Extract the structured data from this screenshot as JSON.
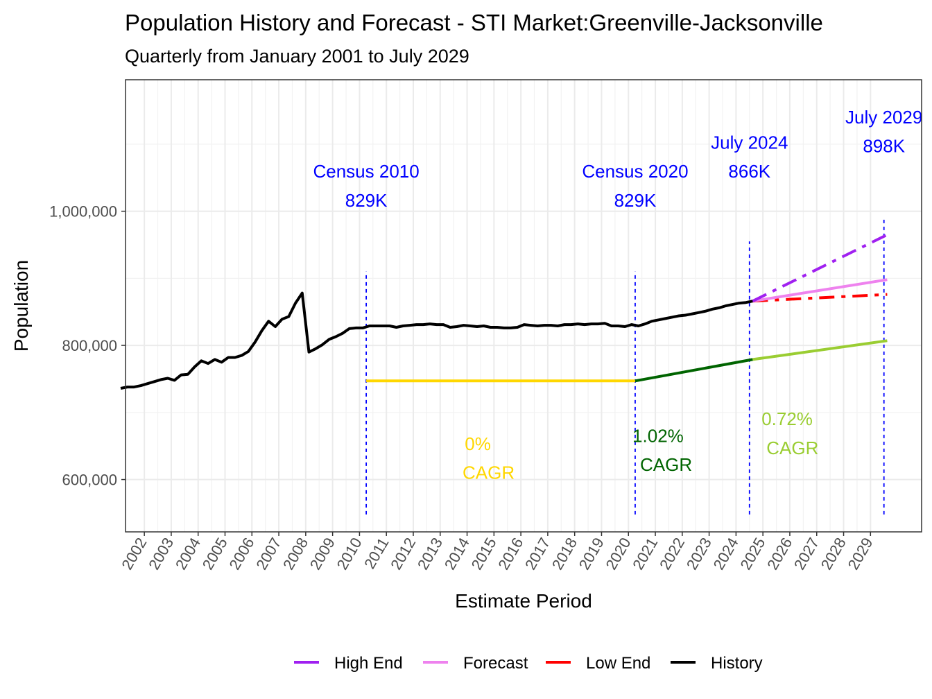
{
  "chart_data": {
    "type": "line",
    "title": "Population History and Forecast - STI Market:Greenville-Jacksonville",
    "subtitle": "Quarterly from January 2001 to July 2029",
    "xlabel": "Estimate Period",
    "ylabel": "Population",
    "xlim": [
      2001.3,
      2030.9
    ],
    "ylim": [
      522000,
      1196000
    ],
    "x_ticks": [
      2002,
      2003,
      2004,
      2005,
      2006,
      2007,
      2008,
      2009,
      2010,
      2011,
      2012,
      2013,
      2014,
      2015,
      2016,
      2017,
      2018,
      2019,
      2020,
      2021,
      2022,
      2023,
      2024,
      2025,
      2026,
      2027,
      2028,
      2029
    ],
    "y_ticks": [
      600000,
      800000,
      1000000
    ],
    "y_tick_labels": [
      "600,000",
      "800,000",
      "1,000,000"
    ],
    "colors": {
      "history": "#000000",
      "forecast": "#EE82EE",
      "high_end": "#A020F0",
      "low_end": "#FF0000",
      "cagr_2010_2020": "#FFD700",
      "cagr_2020_2024": "#006400",
      "cagr_2024_2029": "#9ACD32",
      "annotation": "#0000FF"
    },
    "series": [
      {
        "name": "History",
        "style": "solid",
        "points": [
          [
            2001.12,
            736000
          ],
          [
            2001.37,
            738000
          ],
          [
            2001.62,
            738000
          ],
          [
            2001.87,
            740000
          ],
          [
            2002.12,
            743000
          ],
          [
            2002.37,
            746000
          ],
          [
            2002.62,
            749000
          ],
          [
            2002.87,
            751000
          ],
          [
            2003.12,
            748000
          ],
          [
            2003.37,
            756000
          ],
          [
            2003.62,
            757000
          ],
          [
            2003.87,
            768000
          ],
          [
            2004.12,
            777000
          ],
          [
            2004.37,
            773000
          ],
          [
            2004.62,
            779000
          ],
          [
            2004.87,
            775000
          ],
          [
            2005.12,
            782000
          ],
          [
            2005.37,
            782000
          ],
          [
            2005.62,
            785000
          ],
          [
            2005.87,
            791000
          ],
          [
            2006.12,
            805000
          ],
          [
            2006.37,
            822000
          ],
          [
            2006.62,
            836000
          ],
          [
            2006.87,
            828000
          ],
          [
            2007.12,
            839000
          ],
          [
            2007.37,
            843000
          ],
          [
            2007.62,
            863000
          ],
          [
            2007.87,
            878000
          ],
          [
            2008.12,
            790000
          ],
          [
            2008.37,
            795000
          ],
          [
            2008.62,
            801000
          ],
          [
            2008.87,
            809000
          ],
          [
            2009.12,
            813000
          ],
          [
            2009.37,
            818000
          ],
          [
            2009.62,
            825000
          ],
          [
            2009.87,
            826000
          ],
          [
            2010.12,
            826000
          ],
          [
            2010.37,
            829000
          ],
          [
            2010.62,
            829000
          ],
          [
            2010.87,
            829000
          ],
          [
            2011.12,
            829000
          ],
          [
            2011.37,
            827000
          ],
          [
            2011.62,
            829000
          ],
          [
            2011.87,
            830000
          ],
          [
            2012.12,
            831000
          ],
          [
            2012.37,
            831000
          ],
          [
            2012.62,
            832000
          ],
          [
            2012.87,
            831000
          ],
          [
            2013.12,
            831000
          ],
          [
            2013.37,
            827000
          ],
          [
            2013.62,
            828000
          ],
          [
            2013.87,
            830000
          ],
          [
            2014.12,
            829000
          ],
          [
            2014.37,
            828000
          ],
          [
            2014.62,
            829000
          ],
          [
            2014.87,
            827000
          ],
          [
            2015.12,
            827000
          ],
          [
            2015.37,
            826000
          ],
          [
            2015.62,
            826000
          ],
          [
            2015.87,
            827000
          ],
          [
            2016.12,
            831000
          ],
          [
            2016.37,
            830000
          ],
          [
            2016.62,
            829000
          ],
          [
            2016.87,
            830000
          ],
          [
            2017.12,
            830000
          ],
          [
            2017.37,
            829000
          ],
          [
            2017.62,
            831000
          ],
          [
            2017.87,
            831000
          ],
          [
            2018.12,
            832000
          ],
          [
            2018.37,
            831000
          ],
          [
            2018.62,
            832000
          ],
          [
            2018.87,
            832000
          ],
          [
            2019.12,
            833000
          ],
          [
            2019.37,
            829000
          ],
          [
            2019.62,
            829000
          ],
          [
            2019.87,
            828000
          ],
          [
            2020.12,
            831000
          ],
          [
            2020.37,
            829000
          ],
          [
            2020.62,
            832000
          ],
          [
            2020.87,
            836000
          ],
          [
            2021.12,
            838000
          ],
          [
            2021.37,
            840000
          ],
          [
            2021.62,
            842000
          ],
          [
            2021.87,
            844000
          ],
          [
            2022.12,
            845000
          ],
          [
            2022.37,
            847000
          ],
          [
            2022.62,
            849000
          ],
          [
            2022.87,
            851000
          ],
          [
            2023.12,
            854000
          ],
          [
            2023.37,
            856000
          ],
          [
            2023.62,
            859000
          ],
          [
            2023.87,
            861000
          ],
          [
            2024.12,
            863000
          ],
          [
            2024.37,
            864000
          ],
          [
            2024.62,
            866000
          ]
        ]
      },
      {
        "name": "Forecast",
        "style": "solid",
        "points": [
          [
            2024.62,
            866000
          ],
          [
            2029.62,
            898000
          ]
        ]
      },
      {
        "name": "High End",
        "style": "dashdot",
        "points": [
          [
            2024.62,
            866000
          ],
          [
            2029.62,
            965000
          ]
        ]
      },
      {
        "name": "Low End",
        "style": "dashdot",
        "points": [
          [
            2024.62,
            866000
          ],
          [
            2029.62,
            876000
          ]
        ]
      }
    ],
    "cagr_segments": [
      {
        "name": "CAGR 2010-2020",
        "points": [
          [
            2010.25,
            747000
          ],
          [
            2020.25,
            747000
          ]
        ]
      },
      {
        "name": "CAGR 2020-2024",
        "points": [
          [
            2020.25,
            747000
          ],
          [
            2024.62,
            779000
          ]
        ]
      },
      {
        "name": "CAGR 2024-2029",
        "points": [
          [
            2024.62,
            779000
          ],
          [
            2029.62,
            807000
          ]
        ]
      }
    ],
    "vlines": [
      {
        "x": 2010.25,
        "y_range": [
          548000,
          910000
        ]
      },
      {
        "x": 2020.25,
        "y_range": [
          548000,
          910000
        ]
      },
      {
        "x": 2024.5,
        "y_range": [
          548000,
          955000
        ]
      },
      {
        "x": 2029.5,
        "y_range": [
          548000,
          990000
        ]
      }
    ],
    "annotations": [
      {
        "label": "Census 2010",
        "value": "829K",
        "x": 2010.25,
        "y": 1050000,
        "y2": 1007000
      },
      {
        "label": "Census 2020",
        "value": "829K",
        "x": 2020.25,
        "y": 1050000,
        "y2": 1007000
      },
      {
        "label": "July 2024",
        "value": "866K",
        "x": 2024.5,
        "y": 1093000,
        "y2": 1050000
      },
      {
        "label": "July 2029",
        "value": "898K",
        "x": 2029.5,
        "y": 1131000,
        "y2": 1088000
      }
    ],
    "cagr_labels": [
      {
        "rate": "0%",
        "word": "CAGR",
        "x": 2014.4,
        "y": 644000,
        "y2": 601000,
        "x2": 2014.8,
        "color_key": "cagr_2010_2020"
      },
      {
        "rate": "1.02%",
        "word": "CAGR",
        "x": 2021.1,
        "y": 656000,
        "y2": 613000,
        "x2": 2021.4,
        "color_key": "cagr_2020_2024"
      },
      {
        "rate": "0.72%",
        "word": "CAGR",
        "x": 2025.9,
        "y": 681000,
        "y2": 638000,
        "x2": 2026.1,
        "color_key": "cagr_2024_2029"
      }
    ],
    "legend": {
      "position": "bottom",
      "entries": [
        {
          "label": "High End",
          "color_key": "high_end"
        },
        {
          "label": "Forecast",
          "color_key": "forecast"
        },
        {
          "label": "Low End",
          "color_key": "low_end"
        },
        {
          "label": "History",
          "color_key": "history"
        }
      ]
    }
  }
}
